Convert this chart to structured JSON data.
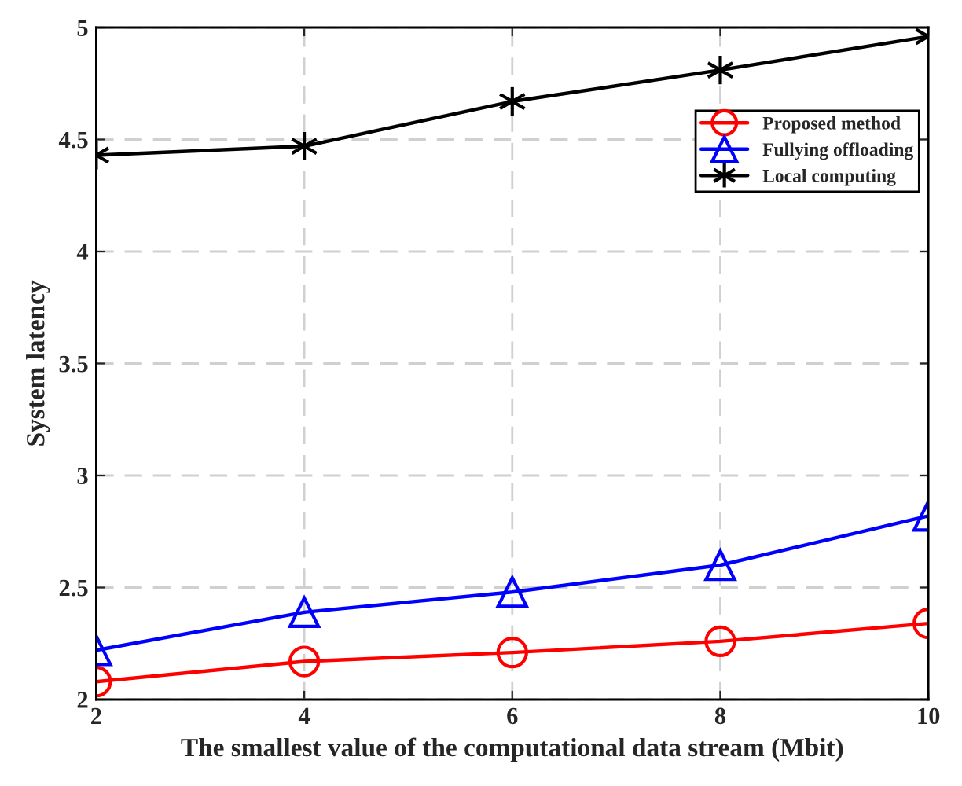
{
  "chart_data": {
    "type": "line",
    "xlabel": "The smallest value of the computational data stream (Mbit)",
    "ylabel": "System latency",
    "x": [
      2,
      4,
      6,
      8,
      10
    ],
    "xlim": [
      2,
      10
    ],
    "xticks": [
      2,
      4,
      6,
      8,
      10
    ],
    "ylim": [
      2,
      5
    ],
    "yticks": [
      2,
      2.5,
      3,
      3.5,
      4,
      4.5,
      5
    ],
    "grid": true,
    "legend": "top right",
    "line_style": "solid",
    "series": [
      {
        "name": "Proposed method",
        "color": "#ff0000",
        "marker": "circle",
        "values": [
          2.08,
          2.17,
          2.21,
          2.26,
          2.34
        ]
      },
      {
        "name": "Fullying offloading",
        "color": "#0000ff",
        "marker": "triangle",
        "values": [
          2.22,
          2.39,
          2.48,
          2.6,
          2.82
        ]
      },
      {
        "name": "Local computing",
        "color": "#000000",
        "marker": "cross",
        "values": [
          4.43,
          4.47,
          4.67,
          4.81,
          4.96
        ]
      }
    ]
  }
}
